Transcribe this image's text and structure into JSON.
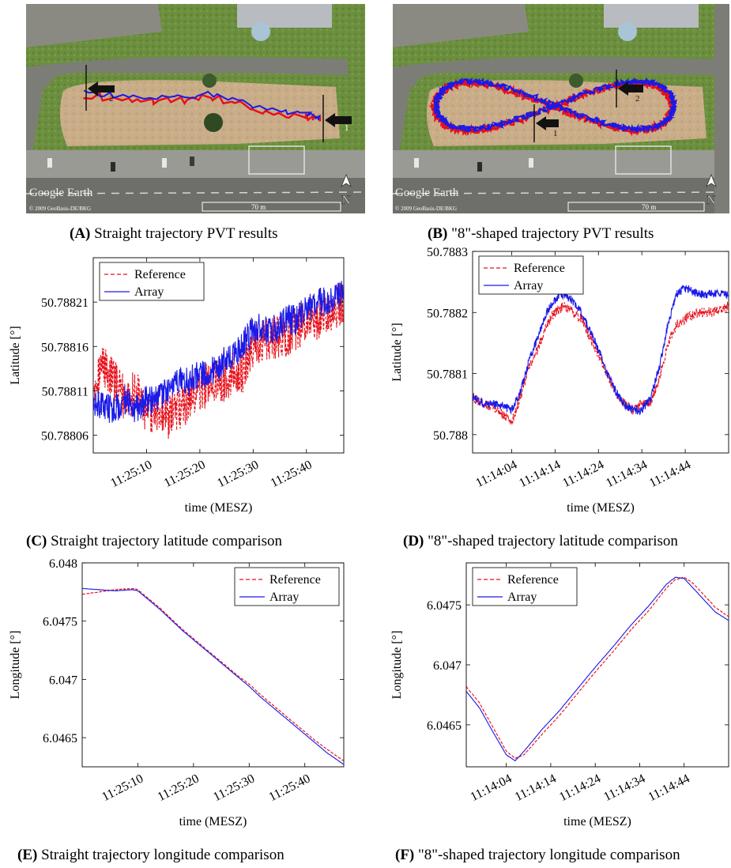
{
  "captions": {
    "a": {
      "letter": "(A)",
      "text": "Straight trajectory PVT results"
    },
    "b": {
      "letter": "(B)",
      "text": "\"8\"-shaped trajectory PVT results"
    },
    "c": {
      "letter": "(C)",
      "text": "Straight trajectory latitude comparison"
    },
    "d": {
      "letter": "(D)",
      "text": "\"8\"-shaped trajectory latitude comparison"
    },
    "e": {
      "letter": "(E)",
      "text": "Straight trajectory longitude comparison"
    },
    "f": {
      "letter": "(F)",
      "text": "\"8\"-shaped trajectory longitude comparison"
    }
  },
  "maps": {
    "watermark": "Google Earth",
    "scale": "70 m",
    "copyright": "© 2009 GeoBasis-DE/BKG",
    "north": "N",
    "a_markers": [
      "1",
      "2"
    ],
    "b_markers": [
      "1",
      "2"
    ],
    "colors": {
      "reference": "#e8101a",
      "array": "#1a1ae8"
    }
  },
  "chart_data": [
    {
      "id": "C",
      "type": "line",
      "xlabel": "time (MESZ)",
      "ylabel": "Latitude [°]",
      "xticks": [
        "11:25:10",
        "11:25:20",
        "11:25:30",
        "11:25:40"
      ],
      "xtick_pos": [
        10,
        20,
        30,
        40
      ],
      "xlim": [
        0,
        47
      ],
      "yticks": [
        "50.78806",
        "50.78811",
        "50.78816",
        "50.78821"
      ],
      "ytick_vals": [
        50.78806,
        50.78811,
        50.78816,
        50.78821
      ],
      "ylim": [
        50.78804,
        50.78826
      ],
      "legend": "top-left",
      "series": [
        {
          "name": "Reference",
          "color": "#e8101a",
          "style": "dashed",
          "x": [
            0,
            2,
            4,
            6,
            8,
            10,
            12,
            14,
            16,
            18,
            20,
            22,
            24,
            26,
            28,
            30,
            32,
            34,
            36,
            38,
            40,
            42,
            44,
            47
          ],
          "y": [
            50.78812,
            50.78814,
            50.78812,
            50.7881,
            50.78811,
            50.78808,
            50.78809,
            50.78808,
            50.78809,
            50.7881,
            50.78811,
            50.78812,
            50.78812,
            50.78813,
            50.78813,
            50.78816,
            50.78817,
            50.78817,
            50.78817,
            50.78818,
            50.78819,
            50.78819,
            50.7882,
            50.78821
          ],
          "noise": 2.5e-05
        },
        {
          "name": "Array",
          "color": "#1a1ae8",
          "style": "solid",
          "x": [
            0,
            2,
            4,
            6,
            8,
            10,
            12,
            14,
            16,
            18,
            20,
            22,
            24,
            26,
            28,
            30,
            32,
            34,
            36,
            38,
            40,
            42,
            44,
            47
          ],
          "y": [
            50.7881,
            50.78809,
            50.78809,
            50.7881,
            50.78809,
            50.7881,
            50.7881,
            50.78811,
            50.78812,
            50.78812,
            50.78813,
            50.78813,
            50.78814,
            50.78815,
            50.78816,
            50.78818,
            50.78818,
            50.78818,
            50.78819,
            50.78819,
            50.7882,
            50.78821,
            50.78821,
            50.78822
          ],
          "noise": 1.7e-05
        }
      ]
    },
    {
      "id": "D",
      "type": "line",
      "xlabel": "time (MESZ)",
      "ylabel": "Latitude [°]",
      "xticks": [
        "11:14:04",
        "11:14:14",
        "11:14:24",
        "11:14:34",
        "11:14:44"
      ],
      "xtick_pos": [
        4,
        14,
        24,
        34,
        44
      ],
      "xlim": [
        -5,
        54
      ],
      "yticks": [
        "50.788",
        "50.7881",
        "50.7882",
        "50.7883"
      ],
      "ytick_vals": [
        50.788,
        50.7881,
        50.7882,
        50.7883
      ],
      "ylim": [
        50.78797,
        50.7883
      ],
      "legend": "top-left",
      "series": [
        {
          "name": "Reference",
          "color": "#e8101a",
          "style": "dashed",
          "x": [
            -5,
            -2,
            1,
            4,
            6,
            8,
            10,
            12,
            14,
            16,
            18,
            20,
            22,
            24,
            26,
            28,
            30,
            32,
            34,
            36,
            38,
            40,
            42,
            44,
            47,
            50,
            54
          ],
          "y": [
            50.78806,
            50.78805,
            50.78804,
            50.78802,
            50.78806,
            50.78811,
            50.78814,
            50.78818,
            50.7882,
            50.78821,
            50.7882,
            50.78819,
            50.78816,
            50.78813,
            50.7881,
            50.78807,
            50.78805,
            50.78804,
            50.78805,
            50.78805,
            50.78809,
            50.78815,
            50.78818,
            50.78819,
            50.7882,
            50.7882,
            50.78821
          ],
          "noise": 8e-06
        },
        {
          "name": "Array",
          "color": "#1a1ae8",
          "style": "solid",
          "x": [
            -5,
            -2,
            1,
            4,
            6,
            8,
            10,
            12,
            14,
            16,
            18,
            20,
            22,
            24,
            26,
            28,
            30,
            32,
            34,
            36,
            38,
            40,
            42,
            44,
            47,
            50,
            54
          ],
          "y": [
            50.78806,
            50.78805,
            50.78805,
            50.78804,
            50.78807,
            50.78812,
            50.78816,
            50.7882,
            50.78822,
            50.78823,
            50.78822,
            50.7882,
            50.78817,
            50.78814,
            50.7881,
            50.78807,
            50.78805,
            50.78804,
            50.78804,
            50.78806,
            50.78811,
            50.78818,
            50.78823,
            50.78824,
            50.78823,
            50.78823,
            50.78823
          ],
          "noise": 7e-06
        }
      ]
    },
    {
      "id": "E",
      "type": "line",
      "xlabel": "time (MESZ)",
      "ylabel": "Longitude [°]",
      "xticks": [
        "11:25:10",
        "11:25:20",
        "11:25:30",
        "11:25:40"
      ],
      "xtick_pos": [
        10,
        20,
        30,
        40
      ],
      "xlim": [
        0,
        47
      ],
      "yticks": [
        "6.0465",
        "6.047",
        "6.0475",
        "6.048"
      ],
      "ytick_vals": [
        6.0465,
        6.047,
        6.0475,
        6.048
      ],
      "ylim": [
        6.04625,
        6.048
      ],
      "legend": "top-right",
      "series": [
        {
          "name": "Reference",
          "color": "#e8101a",
          "style": "dashed",
          "x": [
            0,
            3,
            6,
            9,
            10,
            12,
            14,
            16,
            18,
            20,
            22,
            24,
            26,
            28,
            30,
            32,
            34,
            36,
            38,
            40,
            42,
            44,
            47
          ],
          "y": [
            6.04773,
            6.04775,
            6.04777,
            6.04778,
            6.04777,
            6.04769,
            6.04761,
            6.04752,
            6.04743,
            6.04735,
            6.04727,
            6.04719,
            6.04711,
            6.04703,
            6.04696,
            6.04687,
            6.04679,
            6.04671,
            6.04663,
            6.04655,
            6.04647,
            6.0464,
            6.0463
          ],
          "noise": 2.2e-06
        },
        {
          "name": "Array",
          "color": "#1a1ae8",
          "style": "solid",
          "x": [
            0,
            3,
            6,
            9,
            10,
            12,
            14,
            16,
            18,
            20,
            22,
            24,
            26,
            28,
            30,
            32,
            34,
            36,
            38,
            40,
            42,
            44,
            47
          ],
          "y": [
            6.04778,
            6.04777,
            6.04776,
            6.04777,
            6.04776,
            6.04768,
            6.0476,
            6.04751,
            6.04742,
            6.04734,
            6.04726,
            6.04718,
            6.0471,
            6.04702,
            6.04694,
            6.04685,
            6.04677,
            6.04669,
            6.04661,
            6.04653,
            6.04645,
            6.04637,
            6.04627
          ],
          "noise": 1.2e-06
        }
      ]
    },
    {
      "id": "F",
      "type": "line",
      "xlabel": "time (MESZ)",
      "ylabel": "Longitude [°]",
      "xticks": [
        "11:14:04",
        "11:14:14",
        "11:14:24",
        "11:14:34",
        "11:14:44"
      ],
      "xtick_pos": [
        4,
        14,
        24,
        34,
        44
      ],
      "xlim": [
        -5,
        54
      ],
      "yticks": [
        "6.0465",
        "6.047",
        "6.0475"
      ],
      "ytick_vals": [
        6.0465,
        6.047,
        6.0475
      ],
      "ylim": [
        6.04615,
        6.04785
      ],
      "legend": "top-left",
      "series": [
        {
          "name": "Reference",
          "color": "#e8101a",
          "style": "dashed",
          "x": [
            -5,
            -2,
            1,
            4,
            6,
            8,
            12,
            16,
            20,
            24,
            28,
            32,
            36,
            40,
            42,
            44,
            46,
            48,
            51,
            54
          ],
          "y": [
            6.04682,
            6.04668,
            6.04648,
            6.04628,
            6.04622,
            6.04625,
            6.04642,
            6.04658,
            6.04676,
            6.04694,
            6.04711,
            6.04729,
            6.04745,
            6.04764,
            6.04771,
            6.04773,
            6.04768,
            6.0476,
            6.04748,
            6.0474
          ],
          "noise": 2.5e-06
        },
        {
          "name": "Array",
          "color": "#1a1ae8",
          "style": "solid",
          "x": [
            -5,
            -2,
            1,
            4,
            6,
            8,
            12,
            16,
            20,
            24,
            28,
            32,
            36,
            40,
            42,
            44,
            46,
            48,
            51,
            54
          ],
          "y": [
            6.04678,
            6.04664,
            6.04644,
            6.04625,
            6.0462,
            6.04628,
            6.04646,
            6.04662,
            6.0468,
            6.04698,
            6.04715,
            6.04733,
            6.04749,
            6.04767,
            6.04773,
            6.04772,
            6.04764,
            6.04756,
            6.04744,
            6.04737
          ],
          "noise": 1.5e-06
        }
      ]
    }
  ]
}
